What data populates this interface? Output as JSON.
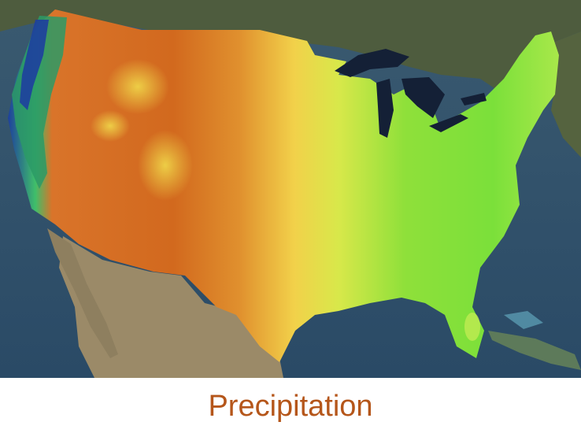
{
  "caption": "Precipitation",
  "colors": {
    "caption": "#b5561a",
    "ocean": "#2f4f6b",
    "land_north": "#4a5a3a",
    "land_mexico": "#9a8a6a",
    "lakes": "#142036",
    "precip_dry": "#d2691e",
    "precip_mid": "#f2d14a",
    "precip_wet": "#7be03a",
    "precip_very_wet": "#1e3f9e"
  }
}
